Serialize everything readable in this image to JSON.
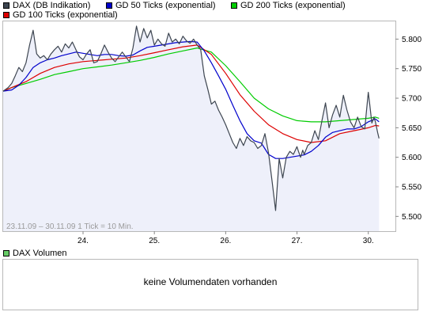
{
  "legend": [
    {
      "label": "DAX (DB Indikation)",
      "color": "#3d4550"
    },
    {
      "label": "GD 50 Ticks (exponential)",
      "color": "#0000cc"
    },
    {
      "label": "GD 200 Ticks (exponential)",
      "color": "#00cc00"
    },
    {
      "label": "GD 100 Ticks (exponential)",
      "color": "#dd0000"
    }
  ],
  "range_label": "23.11.09 – 30.11.09   1 Tick = 10 Min.",
  "volume": {
    "legend_label": "DAX Volumen",
    "legend_color": "#66cc66",
    "message": "keine Volumendaten vorhanden"
  },
  "chart_data": {
    "type": "line",
    "x_unit": "trading day (23.11.09 – 30.11.09)",
    "x_tick_labels": [
      {
        "x": 1,
        "label": "24."
      },
      {
        "x": 2,
        "label": "25."
      },
      {
        "x": 3,
        "label": "26."
      },
      {
        "x": 4,
        "label": "27."
      },
      {
        "x": 5,
        "label": "30."
      }
    ],
    "xlim": [
      -0.12,
      5.38
    ],
    "ylim": [
      5475,
      5830
    ],
    "yticks": [
      5500,
      5550,
      5600,
      5650,
      5700,
      5750,
      5800
    ],
    "ytick_labels": [
      "5.500",
      "5.550",
      "5.600",
      "5.650",
      "5.700",
      "5.750",
      "5.800"
    ],
    "grid": false,
    "legend_position": "top",
    "series": [
      {
        "name": "DAX (DB Indikation)",
        "color": "#3d4550",
        "fill": "#eef0fa",
        "x": [
          -0.12,
          -0.05,
          0.0,
          0.05,
          0.1,
          0.15,
          0.2,
          0.25,
          0.3,
          0.35,
          0.4,
          0.45,
          0.5,
          0.55,
          0.6,
          0.65,
          0.7,
          0.75,
          0.8,
          0.85,
          0.9,
          0.95,
          1.0,
          1.05,
          1.1,
          1.15,
          1.2,
          1.25,
          1.3,
          1.35,
          1.4,
          1.45,
          1.5,
          1.55,
          1.6,
          1.65,
          1.7,
          1.75,
          1.8,
          1.85,
          1.9,
          1.95,
          2.0,
          2.05,
          2.1,
          2.15,
          2.2,
          2.25,
          2.3,
          2.35,
          2.4,
          2.45,
          2.5,
          2.55,
          2.6,
          2.65,
          2.7,
          2.75,
          2.8,
          2.85,
          2.9,
          2.95,
          3.0,
          3.05,
          3.1,
          3.15,
          3.2,
          3.25,
          3.3,
          3.35,
          3.4,
          3.45,
          3.5,
          3.55,
          3.6,
          3.65,
          3.7,
          3.75,
          3.8,
          3.85,
          3.9,
          3.95,
          4.0,
          4.02,
          4.05,
          4.08,
          4.1,
          4.15,
          4.2,
          4.25,
          4.3,
          4.35,
          4.4,
          4.45,
          4.5,
          4.55,
          4.6,
          4.65,
          4.7,
          4.75,
          4.8,
          4.85,
          4.9,
          4.95,
          5.0,
          5.02,
          5.05,
          5.08,
          5.1,
          5.13,
          5.15
        ],
        "values": [
          5712,
          5718,
          5725,
          5738,
          5752,
          5745,
          5760,
          5790,
          5815,
          5775,
          5768,
          5772,
          5765,
          5775,
          5782,
          5788,
          5778,
          5792,
          5785,
          5795,
          5782,
          5770,
          5765,
          5775,
          5782,
          5760,
          5762,
          5775,
          5790,
          5778,
          5768,
          5762,
          5770,
          5778,
          5770,
          5762,
          5785,
          5822,
          5795,
          5818,
          5802,
          5815,
          5790,
          5800,
          5792,
          5788,
          5810,
          5795,
          5800,
          5792,
          5805,
          5797,
          5793,
          5800,
          5790,
          5782,
          5738,
          5715,
          5690,
          5695,
          5680,
          5668,
          5655,
          5640,
          5625,
          5615,
          5632,
          5620,
          5635,
          5628,
          5625,
          5615,
          5620,
          5640,
          5608,
          5560,
          5510,
          5598,
          5565,
          5600,
          5610,
          5605,
          5618,
          5610,
          5600,
          5612,
          5605,
          5620,
          5625,
          5645,
          5630,
          5662,
          5692,
          5650,
          5672,
          5688,
          5668,
          5705,
          5680,
          5660,
          5650,
          5668,
          5652,
          5648,
          5710,
          5690,
          5658,
          5668,
          5660,
          5642,
          5632
        ]
      },
      {
        "name": "GD 50 Ticks (exponential)",
        "color": "#0000cc",
        "x": [
          -0.12,
          0.0,
          0.1,
          0.2,
          0.3,
          0.4,
          0.5,
          0.6,
          0.7,
          0.8,
          0.9,
          1.0,
          1.1,
          1.2,
          1.3,
          1.4,
          1.5,
          1.6,
          1.7,
          1.8,
          1.9,
          2.0,
          2.1,
          2.2,
          2.3,
          2.4,
          2.5,
          2.6,
          2.7,
          2.8,
          2.9,
          3.0,
          3.1,
          3.2,
          3.3,
          3.4,
          3.5,
          3.6,
          3.7,
          3.8,
          3.9,
          4.0,
          4.1,
          4.2,
          4.3,
          4.4,
          4.5,
          4.6,
          4.7,
          4.8,
          4.9,
          5.0,
          5.1,
          5.15
        ],
        "values": [
          5712,
          5714,
          5722,
          5735,
          5752,
          5760,
          5765,
          5768,
          5772,
          5775,
          5778,
          5776,
          5774,
          5772,
          5774,
          5774,
          5772,
          5771,
          5773,
          5780,
          5786,
          5788,
          5790,
          5792,
          5794,
          5795,
          5796,
          5795,
          5780,
          5760,
          5738,
          5715,
          5688,
          5662,
          5640,
          5628,
          5624,
          5605,
          5598,
          5598,
          5600,
          5602,
          5604,
          5610,
          5620,
          5634,
          5642,
          5645,
          5648,
          5648,
          5652,
          5660,
          5665,
          5660
        ]
      },
      {
        "name": "GD 100 Ticks (exponential)",
        "color": "#dd0000",
        "x": [
          -0.12,
          0.0,
          0.2,
          0.4,
          0.6,
          0.8,
          1.0,
          1.2,
          1.4,
          1.6,
          1.8,
          2.0,
          2.2,
          2.4,
          2.6,
          2.8,
          3.0,
          3.2,
          3.4,
          3.6,
          3.8,
          4.0,
          4.2,
          4.4,
          4.6,
          4.8,
          5.0,
          5.1,
          5.15
        ],
        "values": [
          5712,
          5718,
          5728,
          5742,
          5752,
          5758,
          5762,
          5764,
          5766,
          5768,
          5772,
          5777,
          5782,
          5787,
          5790,
          5774,
          5742,
          5706,
          5678,
          5655,
          5640,
          5630,
          5625,
          5628,
          5640,
          5645,
          5650,
          5654,
          5653
        ]
      },
      {
        "name": "GD 200 Ticks (exponential)",
        "color": "#00cc00",
        "x": [
          -0.12,
          0.0,
          0.2,
          0.4,
          0.6,
          0.8,
          1.0,
          1.2,
          1.4,
          1.6,
          1.8,
          2.0,
          2.2,
          2.4,
          2.6,
          2.8,
          3.0,
          3.2,
          3.4,
          3.6,
          3.8,
          4.0,
          4.2,
          4.4,
          4.6,
          4.8,
          5.0,
          5.1,
          5.15
        ],
        "values": [
          5712,
          5718,
          5725,
          5732,
          5740,
          5745,
          5750,
          5753,
          5756,
          5760,
          5764,
          5769,
          5775,
          5780,
          5785,
          5778,
          5755,
          5728,
          5700,
          5682,
          5670,
          5662,
          5660,
          5660,
          5662,
          5664,
          5666,
          5668,
          5666
        ]
      }
    ]
  }
}
